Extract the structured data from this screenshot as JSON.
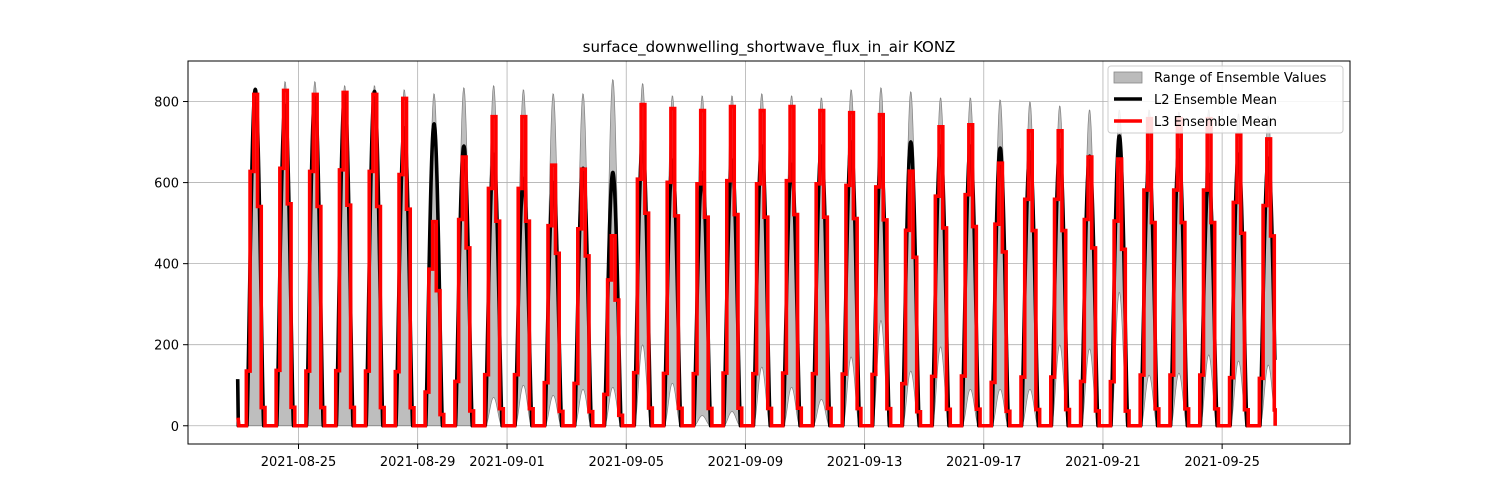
{
  "chart_data": {
    "type": "line",
    "title": "surface_downwelling_shortwave_flux_in_air KONZ",
    "xlabel": "",
    "ylabel": "",
    "x_start": "2021-08-23",
    "x_end": "2021-09-27",
    "xlim": [
      "2021-08-21T07:00",
      "2021-09-29T07:00"
    ],
    "ylim": [
      -45,
      900
    ],
    "xticks": [
      "2021-08-25",
      "2021-08-29",
      "2021-09-01",
      "2021-09-05",
      "2021-09-09",
      "2021-09-13",
      "2021-09-17",
      "2021-09-21",
      "2021-09-25"
    ],
    "yticks": [
      0,
      200,
      400,
      600,
      800
    ],
    "grid": true,
    "legend_position": "top-right",
    "series": [
      {
        "name": "Range of Ensemble Values",
        "kind": "band",
        "color": "#bbbbbb",
        "daily_max": [
          830,
          850,
          850,
          840,
          840,
          830,
          820,
          835,
          840,
          830,
          820,
          820,
          855,
          845,
          815,
          815,
          815,
          820,
          815,
          810,
          830,
          835,
          825,
          810,
          810,
          805,
          800,
          790,
          780,
          780,
          780,
          775,
          780,
          770,
          765
        ],
        "daily_min": [
          0,
          0,
          0,
          0,
          0,
          0,
          0,
          0,
          70,
          100,
          75,
          90,
          95,
          200,
          105,
          25,
          35,
          145,
          95,
          65,
          170,
          260,
          135,
          195,
          90,
          90,
          90,
          200,
          190,
          330,
          125,
          130,
          175,
          160,
          150
        ]
      },
      {
        "name": "L2 Ensemble Mean",
        "kind": "line",
        "color": "#000000",
        "daily_peak": [
          830,
          790,
          815,
          820,
          825,
          735,
          745,
          690,
          670,
          610,
          600,
          635,
          625,
          700,
          655,
          625,
          655,
          690,
          645,
          690,
          700,
          660,
          700,
          690,
          690,
          685,
          675,
          680,
          665,
          715,
          650,
          680,
          620,
          670,
          660
        ]
      },
      {
        "name": "L3 Ensemble Mean",
        "kind": "line",
        "color": "#ff0000",
        "daily_peak": [
          820,
          830,
          820,
          825,
          820,
          810,
          505,
          665,
          765,
          765,
          645,
          635,
          470,
          795,
          785,
          780,
          790,
          780,
          790,
          780,
          775,
          770,
          630,
          740,
          745,
          650,
          730,
          730,
          665,
          660,
          760,
          760,
          760,
          720,
          710
        ]
      }
    ]
  }
}
